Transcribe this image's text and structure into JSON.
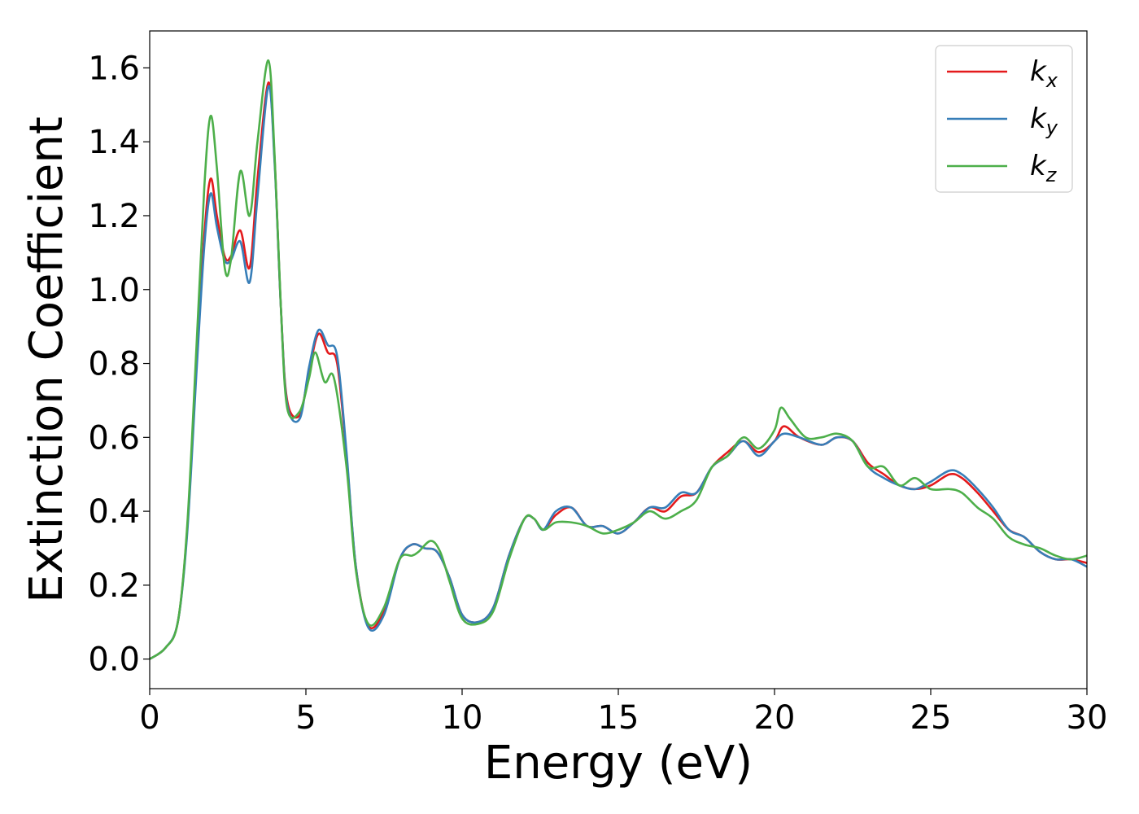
{
  "chart_data": {
    "type": "line",
    "xlabel": "Energy (eV)",
    "ylabel": "Extinction Coefficient",
    "xlim": [
      0,
      30
    ],
    "ylim": [
      -0.08,
      1.7
    ],
    "xticks": [
      "0",
      "5",
      "10",
      "15",
      "20",
      "25",
      "30"
    ],
    "xtick_values": [
      0,
      5,
      10,
      15,
      20,
      25,
      30
    ],
    "yticks": [
      "0.0",
      "0.2",
      "0.4",
      "0.6",
      "0.8",
      "1.0",
      "1.2",
      "1.4",
      "1.6"
    ],
    "ytick_values": [
      0.0,
      0.2,
      0.4,
      0.6,
      0.8,
      1.0,
      1.2,
      1.4,
      1.6
    ],
    "grid": false,
    "legend_position": "top-right",
    "series": [
      {
        "name": "k_x",
        "label_base": "k",
        "label_sub": "x",
        "color": "#e41a1c",
        "points": [
          [
            0,
            0
          ],
          [
            0.5,
            0.03
          ],
          [
            0.9,
            0.1
          ],
          [
            1.2,
            0.35
          ],
          [
            1.5,
            0.8
          ],
          [
            1.75,
            1.15
          ],
          [
            1.95,
            1.3
          ],
          [
            2.15,
            1.2
          ],
          [
            2.4,
            1.09
          ],
          [
            2.6,
            1.09
          ],
          [
            2.9,
            1.16
          ],
          [
            3.2,
            1.06
          ],
          [
            3.45,
            1.3
          ],
          [
            3.8,
            1.56
          ],
          [
            4.0,
            1.35
          ],
          [
            4.2,
            0.95
          ],
          [
            4.4,
            0.7
          ],
          [
            4.8,
            0.66
          ],
          [
            5.1,
            0.78
          ],
          [
            5.4,
            0.88
          ],
          [
            5.7,
            0.83
          ],
          [
            6.0,
            0.8
          ],
          [
            6.3,
            0.55
          ],
          [
            6.6,
            0.25
          ],
          [
            7.0,
            0.09
          ],
          [
            7.5,
            0.13
          ],
          [
            8.0,
            0.27
          ],
          [
            8.4,
            0.31
          ],
          [
            8.8,
            0.3
          ],
          [
            9.2,
            0.29
          ],
          [
            9.6,
            0.22
          ],
          [
            10.0,
            0.12
          ],
          [
            10.5,
            0.1
          ],
          [
            11.0,
            0.14
          ],
          [
            11.5,
            0.28
          ],
          [
            12.0,
            0.38
          ],
          [
            12.3,
            0.38
          ],
          [
            12.6,
            0.35
          ],
          [
            13.0,
            0.39
          ],
          [
            13.5,
            0.41
          ],
          [
            14.0,
            0.36
          ],
          [
            14.5,
            0.36
          ],
          [
            15.0,
            0.34
          ],
          [
            15.5,
            0.37
          ],
          [
            16.0,
            0.41
          ],
          [
            16.5,
            0.4
          ],
          [
            17.0,
            0.44
          ],
          [
            17.5,
            0.45
          ],
          [
            18.0,
            0.52
          ],
          [
            18.5,
            0.56
          ],
          [
            19.0,
            0.59
          ],
          [
            19.5,
            0.56
          ],
          [
            20.0,
            0.59
          ],
          [
            20.3,
            0.63
          ],
          [
            20.8,
            0.6
          ],
          [
            21.5,
            0.58
          ],
          [
            22.0,
            0.6
          ],
          [
            22.5,
            0.59
          ],
          [
            23.0,
            0.53
          ],
          [
            23.5,
            0.5
          ],
          [
            24.0,
            0.47
          ],
          [
            24.5,
            0.46
          ],
          [
            25.0,
            0.47
          ],
          [
            25.6,
            0.5
          ],
          [
            26.0,
            0.49
          ],
          [
            26.5,
            0.45
          ],
          [
            27.0,
            0.4
          ],
          [
            27.5,
            0.35
          ],
          [
            28.0,
            0.33
          ],
          [
            28.5,
            0.29
          ],
          [
            29.0,
            0.27
          ],
          [
            29.5,
            0.27
          ],
          [
            30.0,
            0.26
          ]
        ]
      },
      {
        "name": "k_y",
        "label_base": "k",
        "label_sub": "y",
        "color": "#377eb8",
        "points": [
          [
            0,
            0
          ],
          [
            0.5,
            0.03
          ],
          [
            0.9,
            0.1
          ],
          [
            1.2,
            0.34
          ],
          [
            1.5,
            0.78
          ],
          [
            1.75,
            1.12
          ],
          [
            1.95,
            1.26
          ],
          [
            2.15,
            1.17
          ],
          [
            2.4,
            1.08
          ],
          [
            2.6,
            1.08
          ],
          [
            2.9,
            1.13
          ],
          [
            3.2,
            1.02
          ],
          [
            3.45,
            1.25
          ],
          [
            3.8,
            1.55
          ],
          [
            4.0,
            1.34
          ],
          [
            4.2,
            0.95
          ],
          [
            4.4,
            0.69
          ],
          [
            4.8,
            0.65
          ],
          [
            5.1,
            0.79
          ],
          [
            5.4,
            0.89
          ],
          [
            5.7,
            0.85
          ],
          [
            6.0,
            0.82
          ],
          [
            6.3,
            0.56
          ],
          [
            6.6,
            0.25
          ],
          [
            7.0,
            0.085
          ],
          [
            7.5,
            0.12
          ],
          [
            8.0,
            0.27
          ],
          [
            8.4,
            0.31
          ],
          [
            8.8,
            0.3
          ],
          [
            9.2,
            0.29
          ],
          [
            9.6,
            0.22
          ],
          [
            10.0,
            0.12
          ],
          [
            10.5,
            0.1
          ],
          [
            11.0,
            0.14
          ],
          [
            11.5,
            0.28
          ],
          [
            12.0,
            0.38
          ],
          [
            12.3,
            0.38
          ],
          [
            12.6,
            0.35
          ],
          [
            13.0,
            0.4
          ],
          [
            13.5,
            0.41
          ],
          [
            14.0,
            0.36
          ],
          [
            14.5,
            0.36
          ],
          [
            15.0,
            0.34
          ],
          [
            15.5,
            0.37
          ],
          [
            16.0,
            0.41
          ],
          [
            16.5,
            0.41
          ],
          [
            17.0,
            0.45
          ],
          [
            17.5,
            0.45
          ],
          [
            18.0,
            0.52
          ],
          [
            18.5,
            0.55
          ],
          [
            19.0,
            0.59
          ],
          [
            19.5,
            0.55
          ],
          [
            20.0,
            0.59
          ],
          [
            20.3,
            0.61
          ],
          [
            20.8,
            0.6
          ],
          [
            21.5,
            0.58
          ],
          [
            22.0,
            0.6
          ],
          [
            22.5,
            0.59
          ],
          [
            23.0,
            0.52
          ],
          [
            23.5,
            0.49
          ],
          [
            24.0,
            0.47
          ],
          [
            24.5,
            0.46
          ],
          [
            25.0,
            0.48
          ],
          [
            25.6,
            0.51
          ],
          [
            26.0,
            0.5
          ],
          [
            26.5,
            0.46
          ],
          [
            27.0,
            0.41
          ],
          [
            27.5,
            0.35
          ],
          [
            28.0,
            0.33
          ],
          [
            28.5,
            0.29
          ],
          [
            29.0,
            0.27
          ],
          [
            29.5,
            0.27
          ],
          [
            30.0,
            0.25
          ]
        ]
      },
      {
        "name": "k_z",
        "label_base": "k",
        "label_sub": "z",
        "color": "#4daf4a",
        "points": [
          [
            0,
            0
          ],
          [
            0.5,
            0.03
          ],
          [
            0.9,
            0.1
          ],
          [
            1.2,
            0.36
          ],
          [
            1.5,
            0.85
          ],
          [
            1.75,
            1.28
          ],
          [
            1.95,
            1.47
          ],
          [
            2.15,
            1.33
          ],
          [
            2.4,
            1.06
          ],
          [
            2.6,
            1.08
          ],
          [
            2.9,
            1.32
          ],
          [
            3.2,
            1.2
          ],
          [
            3.45,
            1.4
          ],
          [
            3.8,
            1.62
          ],
          [
            4.0,
            1.36
          ],
          [
            4.2,
            0.95
          ],
          [
            4.4,
            0.68
          ],
          [
            4.8,
            0.67
          ],
          [
            5.1,
            0.76
          ],
          [
            5.3,
            0.83
          ],
          [
            5.6,
            0.75
          ],
          [
            5.9,
            0.76
          ],
          [
            6.3,
            0.52
          ],
          [
            6.6,
            0.24
          ],
          [
            7.0,
            0.095
          ],
          [
            7.5,
            0.14
          ],
          [
            8.0,
            0.27
          ],
          [
            8.4,
            0.28
          ],
          [
            8.6,
            0.29
          ],
          [
            9.0,
            0.32
          ],
          [
            9.3,
            0.29
          ],
          [
            9.6,
            0.21
          ],
          [
            10.0,
            0.11
          ],
          [
            10.5,
            0.095
          ],
          [
            11.0,
            0.13
          ],
          [
            11.5,
            0.27
          ],
          [
            12.0,
            0.38
          ],
          [
            12.3,
            0.38
          ],
          [
            12.6,
            0.35
          ],
          [
            13.0,
            0.37
          ],
          [
            13.5,
            0.37
          ],
          [
            14.0,
            0.36
          ],
          [
            14.5,
            0.34
          ],
          [
            15.0,
            0.35
          ],
          [
            15.5,
            0.37
          ],
          [
            16.0,
            0.4
          ],
          [
            16.5,
            0.38
          ],
          [
            17.0,
            0.4
          ],
          [
            17.5,
            0.43
          ],
          [
            18.0,
            0.52
          ],
          [
            18.5,
            0.55
          ],
          [
            19.0,
            0.6
          ],
          [
            19.5,
            0.57
          ],
          [
            20.0,
            0.62
          ],
          [
            20.2,
            0.68
          ],
          [
            20.5,
            0.65
          ],
          [
            21.0,
            0.6
          ],
          [
            21.5,
            0.6
          ],
          [
            22.0,
            0.61
          ],
          [
            22.5,
            0.59
          ],
          [
            23.0,
            0.52
          ],
          [
            23.5,
            0.52
          ],
          [
            24.0,
            0.47
          ],
          [
            24.5,
            0.49
          ],
          [
            25.0,
            0.46
          ],
          [
            25.6,
            0.46
          ],
          [
            26.0,
            0.45
          ],
          [
            26.5,
            0.41
          ],
          [
            27.0,
            0.38
          ],
          [
            27.5,
            0.33
          ],
          [
            28.0,
            0.31
          ],
          [
            28.5,
            0.3
          ],
          [
            29.0,
            0.28
          ],
          [
            29.5,
            0.27
          ],
          [
            30.0,
            0.28
          ]
        ]
      }
    ]
  }
}
